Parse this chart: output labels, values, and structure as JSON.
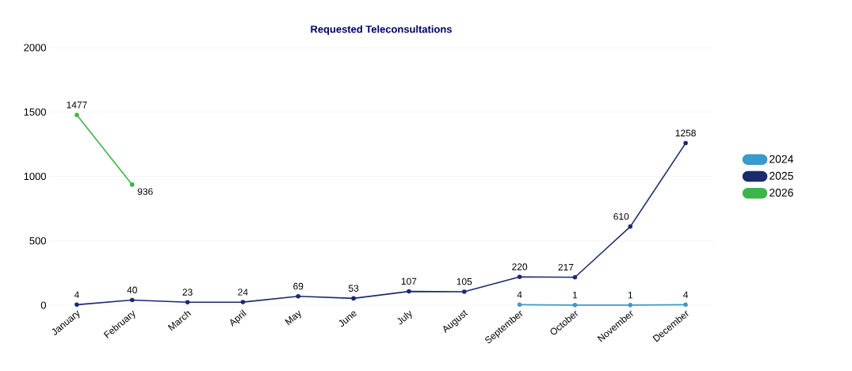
{
  "chart_data": {
    "type": "line",
    "title": "Requested Teleconsultations",
    "categories": [
      "January",
      "February",
      "March",
      "April",
      "May",
      "June",
      "July",
      "August",
      "September",
      "October",
      "November",
      "December"
    ],
    "series": [
      {
        "name": "2024",
        "color": "#3a9ac9",
        "values": [
          null,
          null,
          null,
          null,
          null,
          null,
          null,
          null,
          4,
          1,
          1,
          4
        ]
      },
      {
        "name": "2025",
        "color": "#1c2a6e",
        "values": [
          4,
          40,
          23,
          24,
          69,
          53,
          107,
          105,
          220,
          217,
          610,
          1258
        ]
      },
      {
        "name": "2026",
        "color": "#3cb54a",
        "values": [
          1477,
          936,
          null,
          null,
          null,
          null,
          null,
          null,
          null,
          null,
          null,
          null
        ]
      }
    ],
    "ylim": [
      0,
      2000
    ],
    "yticks": [
      0,
      500,
      1000,
      1500,
      2000
    ],
    "grid": "y",
    "legend": "right",
    "marker": "circle",
    "line_style": "solid",
    "data_labels": true
  }
}
